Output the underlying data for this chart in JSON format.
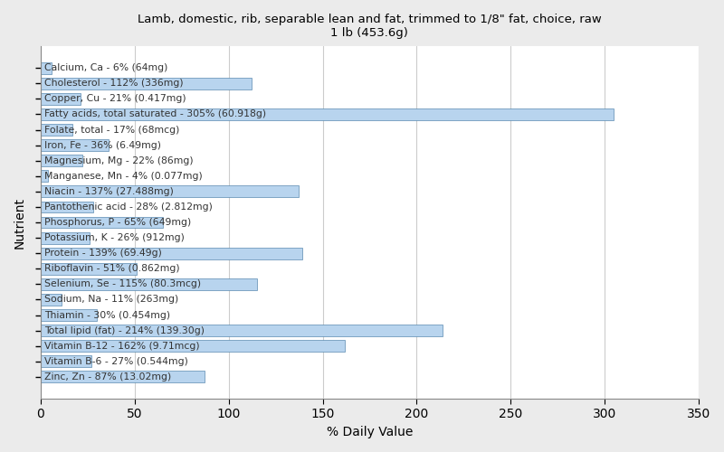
{
  "title": "Lamb, domestic, rib, separable lean and fat, trimmed to 1/8\" fat, choice, raw\n1 lb (453.6g)",
  "xlabel": "% Daily Value",
  "ylabel": "Nutrient",
  "xlim": [
    0,
    350
  ],
  "xticks": [
    0,
    50,
    100,
    150,
    200,
    250,
    300,
    350
  ],
  "background_color": "#ebebeb",
  "plot_bg_color": "#ffffff",
  "bar_color": "#b8d4ee",
  "bar_edge_color": "#5a8ab0",
  "text_color": "#333333",
  "nutrients": [
    {
      "label": "Calcium, Ca - 6% (64mg)",
      "value": 6
    },
    {
      "label": "Cholesterol - 112% (336mg)",
      "value": 112
    },
    {
      "label": "Copper, Cu - 21% (0.417mg)",
      "value": 21
    },
    {
      "label": "Fatty acids, total saturated - 305% (60.918g)",
      "value": 305
    },
    {
      "label": "Folate, total - 17% (68mcg)",
      "value": 17
    },
    {
      "label": "Iron, Fe - 36% (6.49mg)",
      "value": 36
    },
    {
      "label": "Magnesium, Mg - 22% (86mg)",
      "value": 22
    },
    {
      "label": "Manganese, Mn - 4% (0.077mg)",
      "value": 4
    },
    {
      "label": "Niacin - 137% (27.488mg)",
      "value": 137
    },
    {
      "label": "Pantothenic acid - 28% (2.812mg)",
      "value": 28
    },
    {
      "label": "Phosphorus, P - 65% (649mg)",
      "value": 65
    },
    {
      "label": "Potassium, K - 26% (912mg)",
      "value": 26
    },
    {
      "label": "Protein - 139% (69.49g)",
      "value": 139
    },
    {
      "label": "Riboflavin - 51% (0.862mg)",
      "value": 51
    },
    {
      "label": "Selenium, Se - 115% (80.3mcg)",
      "value": 115
    },
    {
      "label": "Sodium, Na - 11% (263mg)",
      "value": 11
    },
    {
      "label": "Thiamin - 30% (0.454mg)",
      "value": 30
    },
    {
      "label": "Total lipid (fat) - 214% (139.30g)",
      "value": 214
    },
    {
      "label": "Vitamin B-12 - 162% (9.71mcg)",
      "value": 162
    },
    {
      "label": "Vitamin B-6 - 27% (0.544mg)",
      "value": 27
    },
    {
      "label": "Zinc, Zn - 87% (13.02mg)",
      "value": 87
    }
  ],
  "label_fontsize": 7.8,
  "title_fontsize": 9.5
}
